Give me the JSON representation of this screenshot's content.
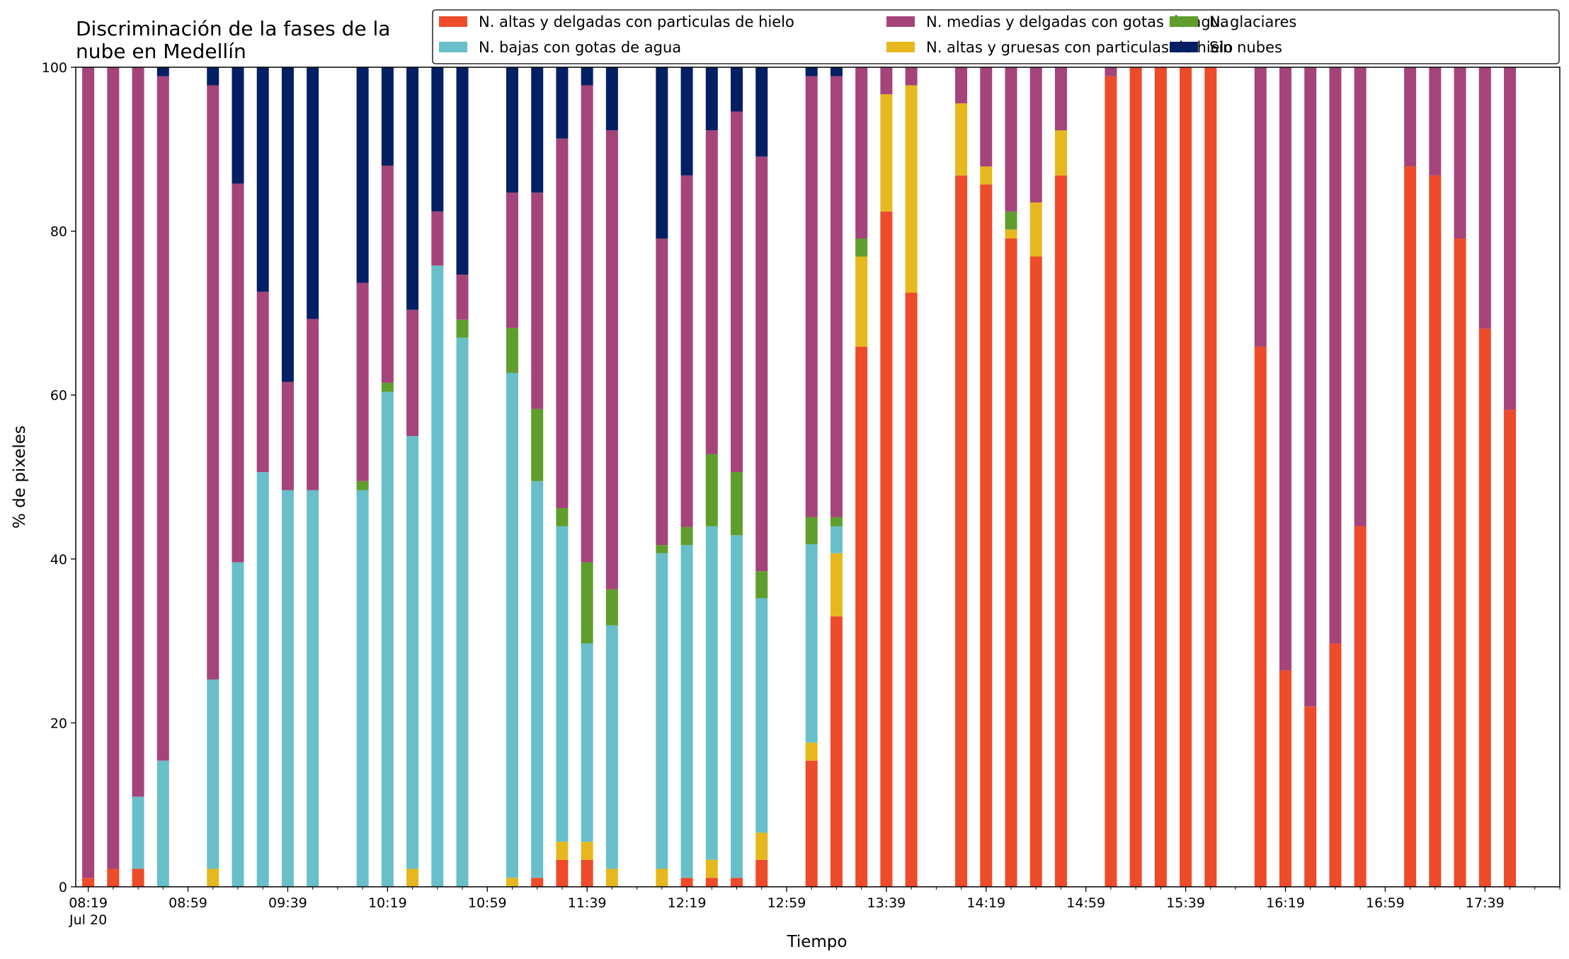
{
  "chart_data": {
    "type": "bar",
    "stacked": true,
    "title": [
      "Discriminación de la fases de la",
      "nube en Medellín"
    ],
    "xlabel": "Tiempo",
    "ylabel": "% de pixeles",
    "ylim": [
      0,
      100
    ],
    "yticks": [
      0,
      20,
      40,
      60,
      80,
      100
    ],
    "xlim": [
      "08:14",
      "18:09"
    ],
    "xticks": [
      {
        "time": "08:19",
        "label": "08:19",
        "sub": "Jul 20"
      },
      {
        "time": "08:59",
        "label": "08:59"
      },
      {
        "time": "09:39",
        "label": "09:39"
      },
      {
        "time": "10:19",
        "label": "10:19"
      },
      {
        "time": "10:59",
        "label": "10:59"
      },
      {
        "time": "11:39",
        "label": "11:39"
      },
      {
        "time": "12:19",
        "label": "12:19"
      },
      {
        "time": "12:59",
        "label": "12:59"
      },
      {
        "time": "13:39",
        "label": "13:39"
      },
      {
        "time": "14:19",
        "label": "14:19"
      },
      {
        "time": "14:59",
        "label": "14:59"
      },
      {
        "time": "15:39",
        "label": "15:39"
      },
      {
        "time": "16:19",
        "label": "16:19"
      },
      {
        "time": "16:59",
        "label": "16:59"
      },
      {
        "time": "17:39",
        "label": "17:39"
      }
    ],
    "minor_tick_interval_minutes": 10,
    "legend_position": "top-right",
    "legend_order": [
      "ah",
      "bw",
      "mw",
      "ag",
      "gl",
      "sn"
    ],
    "stack_order": [
      "ah",
      "ag",
      "bw",
      "gl",
      "mw",
      "sn"
    ],
    "series": [
      {
        "key": "ah",
        "name": "N. altas y delgadas con particulas de hielo",
        "color": "#EE4B2B"
      },
      {
        "key": "ag",
        "name": "N. altas y gruesas con particulas de hielo",
        "color": "#E6B81E"
      },
      {
        "key": "bw",
        "name": "N. bajas con gotas de agua",
        "color": "#68BFC9"
      },
      {
        "key": "gl",
        "name": "N. glaciares",
        "color": "#5F9E2D"
      },
      {
        "key": "mw",
        "name": "N. medias y delgadas con gotas de agua",
        "color": "#A5447A"
      },
      {
        "key": "sn",
        "name": "Sin nubes",
        "color": "#041F63"
      }
    ],
    "bars": [
      {
        "t": "08:19",
        "ah": 1.1,
        "ag": 0,
        "bw": 0,
        "gl": 0,
        "mw": 98.9,
        "sn": 0
      },
      {
        "t": "08:29",
        "ah": 2.2,
        "ag": 0,
        "bw": 0,
        "gl": 0,
        "mw": 97.8,
        "sn": 0
      },
      {
        "t": "08:39",
        "ah": 2.2,
        "ag": 0,
        "bw": 8.8,
        "gl": 0,
        "mw": 89.0,
        "sn": 0
      },
      {
        "t": "08:49",
        "ah": 0,
        "ag": 0,
        "bw": 15.4,
        "gl": 0,
        "mw": 83.5,
        "sn": 1.1
      },
      {
        "t": "09:09",
        "ah": 0,
        "ag": 2.2,
        "bw": 23.1,
        "gl": 0,
        "mw": 72.5,
        "sn": 2.2
      },
      {
        "t": "09:19",
        "ah": 0,
        "ag": 0,
        "bw": 39.6,
        "gl": 0,
        "mw": 46.2,
        "sn": 14.2
      },
      {
        "t": "09:29",
        "ah": 0,
        "ag": 0,
        "bw": 50.6,
        "gl": 0,
        "mw": 22.0,
        "sn": 27.4
      },
      {
        "t": "09:39",
        "ah": 0,
        "ag": 0,
        "bw": 48.4,
        "gl": 0,
        "mw": 13.2,
        "sn": 38.4
      },
      {
        "t": "09:49",
        "ah": 0,
        "ag": 0,
        "bw": 48.4,
        "gl": 0,
        "mw": 20.9,
        "sn": 30.7
      },
      {
        "t": "10:09",
        "ah": 0,
        "ag": 0,
        "bw": 48.4,
        "gl": 1.1,
        "mw": 24.2,
        "sn": 26.3
      },
      {
        "t": "10:19",
        "ah": 0,
        "ag": 0,
        "bw": 60.4,
        "gl": 1.1,
        "mw": 26.5,
        "sn": 12.0
      },
      {
        "t": "10:29",
        "ah": 0,
        "ag": 2.2,
        "bw": 52.8,
        "gl": 0,
        "mw": 15.4,
        "sn": 29.6
      },
      {
        "t": "10:39",
        "ah": 0,
        "ag": 0,
        "bw": 75.8,
        "gl": 0,
        "mw": 6.6,
        "sn": 17.6
      },
      {
        "t": "10:49",
        "ah": 0,
        "ag": 0,
        "bw": 67.0,
        "gl": 2.2,
        "mw": 5.5,
        "sn": 25.3
      },
      {
        "t": "11:09",
        "ah": 0,
        "ag": 1.1,
        "bw": 61.6,
        "gl": 5.5,
        "mw": 16.5,
        "sn": 15.3
      },
      {
        "t": "11:19",
        "ah": 1.1,
        "ag": 0,
        "bw": 48.4,
        "gl": 8.8,
        "mw": 26.4,
        "sn": 15.3
      },
      {
        "t": "11:29",
        "ah": 3.3,
        "ag": 2.2,
        "bw": 38.5,
        "gl": 2.2,
        "mw": 45.1,
        "sn": 8.7
      },
      {
        "t": "11:39",
        "ah": 3.3,
        "ag": 2.2,
        "bw": 24.2,
        "gl": 9.9,
        "mw": 58.2,
        "sn": 2.2
      },
      {
        "t": "11:49",
        "ah": 0,
        "ag": 2.2,
        "bw": 29.7,
        "gl": 4.4,
        "mw": 56.0,
        "sn": 7.7
      },
      {
        "t": "12:09",
        "ah": 0,
        "ag": 2.2,
        "bw": 38.5,
        "gl": 1.0,
        "mw": 37.4,
        "sn": 20.9
      },
      {
        "t": "12:19",
        "ah": 1.1,
        "ag": 0,
        "bw": 40.6,
        "gl": 2.2,
        "mw": 42.9,
        "sn": 13.2
      },
      {
        "t": "12:29",
        "ah": 1.1,
        "ag": 2.2,
        "bw": 40.7,
        "gl": 8.8,
        "mw": 39.5,
        "sn": 7.7
      },
      {
        "t": "12:39",
        "ah": 1.1,
        "ag": 0,
        "bw": 41.8,
        "gl": 7.7,
        "mw": 44.0,
        "sn": 5.4
      },
      {
        "t": "12:49",
        "ah": 3.3,
        "ag": 3.3,
        "bw": 28.6,
        "gl": 3.3,
        "mw": 50.6,
        "sn": 10.9
      },
      {
        "t": "13:09",
        "ah": 15.4,
        "ag": 2.2,
        "bw": 24.2,
        "gl": 3.3,
        "mw": 53.8,
        "sn": 1.1
      },
      {
        "t": "13:19",
        "ah": 33.0,
        "ag": 7.7,
        "bw": 3.3,
        "gl": 1.1,
        "mw": 53.8,
        "sn": 1.1
      },
      {
        "t": "13:29",
        "ah": 65.9,
        "ag": 11.0,
        "bw": 0,
        "gl": 2.2,
        "mw": 20.9,
        "sn": 0
      },
      {
        "t": "13:39",
        "ah": 82.4,
        "ag": 14.3,
        "bw": 0,
        "gl": 0,
        "mw": 3.3,
        "sn": 0
      },
      {
        "t": "13:49",
        "ah": 72.5,
        "ag": 25.3,
        "bw": 0,
        "gl": 0,
        "mw": 2.2,
        "sn": 0
      },
      {
        "t": "14:09",
        "ah": 86.8,
        "ag": 8.8,
        "bw": 0,
        "gl": 0,
        "mw": 4.4,
        "sn": 0
      },
      {
        "t": "14:19",
        "ah": 85.7,
        "ag": 2.2,
        "bw": 0,
        "gl": 0,
        "mw": 12.1,
        "sn": 0
      },
      {
        "t": "14:29",
        "ah": 79.1,
        "ag": 1.1,
        "bw": 0,
        "gl": 2.2,
        "mw": 17.6,
        "sn": 0
      },
      {
        "t": "14:39",
        "ah": 76.9,
        "ag": 6.6,
        "bw": 0,
        "gl": 0,
        "mw": 16.5,
        "sn": 0
      },
      {
        "t": "14:49",
        "ah": 86.8,
        "ag": 5.5,
        "bw": 0,
        "gl": 0,
        "mw": 7.7,
        "sn": 0
      },
      {
        "t": "15:09",
        "ah": 98.9,
        "ag": 0,
        "bw": 0,
        "gl": 0,
        "mw": 1.1,
        "sn": 0
      },
      {
        "t": "15:19",
        "ah": 100,
        "ag": 0,
        "bw": 0,
        "gl": 0,
        "mw": 0,
        "sn": 0
      },
      {
        "t": "15:29",
        "ah": 100,
        "ag": 0,
        "bw": 0,
        "gl": 0,
        "mw": 0,
        "sn": 0
      },
      {
        "t": "15:39",
        "ah": 100,
        "ag": 0,
        "bw": 0,
        "gl": 0,
        "mw": 0,
        "sn": 0
      },
      {
        "t": "15:49",
        "ah": 100,
        "ag": 0,
        "bw": 0,
        "gl": 0,
        "mw": 0,
        "sn": 0
      },
      {
        "t": "16:09",
        "ah": 65.9,
        "ag": 0,
        "bw": 0,
        "gl": 0,
        "mw": 34.1,
        "sn": 0
      },
      {
        "t": "16:19",
        "ah": 26.4,
        "ag": 0,
        "bw": 0,
        "gl": 0,
        "mw": 73.6,
        "sn": 0
      },
      {
        "t": "16:29",
        "ah": 22.0,
        "ag": 0,
        "bw": 0,
        "gl": 0,
        "mw": 78.0,
        "sn": 0
      },
      {
        "t": "16:39",
        "ah": 29.7,
        "ag": 0,
        "bw": 0,
        "gl": 0,
        "mw": 70.3,
        "sn": 0
      },
      {
        "t": "16:49",
        "ah": 44.0,
        "ag": 0,
        "bw": 0,
        "gl": 0,
        "mw": 56.0,
        "sn": 0
      },
      {
        "t": "17:09",
        "ah": 87.9,
        "ag": 0,
        "bw": 0,
        "gl": 0,
        "mw": 12.1,
        "sn": 0
      },
      {
        "t": "17:19",
        "ah": 86.8,
        "ag": 0,
        "bw": 0,
        "gl": 0,
        "mw": 13.2,
        "sn": 0
      },
      {
        "t": "17:29",
        "ah": 79.1,
        "ag": 0,
        "bw": 0,
        "gl": 0,
        "mw": 20.9,
        "sn": 0
      },
      {
        "t": "17:39",
        "ah": 68.1,
        "ag": 0,
        "bw": 0,
        "gl": 0,
        "mw": 31.9,
        "sn": 0
      },
      {
        "t": "17:49",
        "ah": 58.2,
        "ag": 0,
        "bw": 0,
        "gl": 0,
        "mw": 41.8,
        "sn": 0
      }
    ]
  }
}
